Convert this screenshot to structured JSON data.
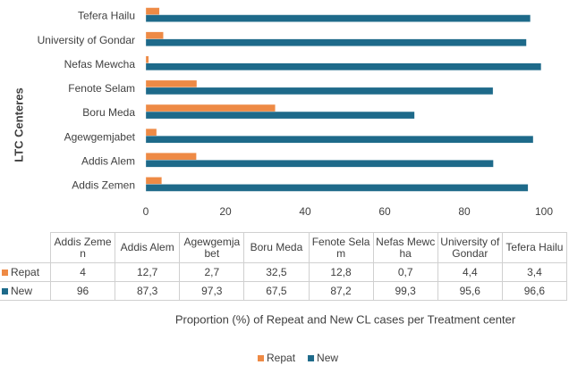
{
  "chart_data": {
    "type": "bar",
    "orientation": "horizontal",
    "y_label": "LTC Centeres",
    "x_label": "Proportion (%) of  Repeat and New CL cases per Treatment center",
    "categories": [
      "Addis Zemen",
      "Addis Alem",
      "Agewgemjabet",
      "Boru Meda",
      "Fenote Selam",
      "Nefas Mewcha",
      "University of Gondar",
      "Tefera Hailu"
    ],
    "series": [
      {
        "name": "Repat",
        "color": "#ee8a45",
        "values": [
          4,
          12.7,
          2.7,
          32.5,
          12.8,
          0.7,
          4.4,
          3.4
        ],
        "value_labels": [
          "4",
          "12,7",
          "2,7",
          "32,5",
          "12,8",
          "0,7",
          "4,4",
          "3,4"
        ]
      },
      {
        "name": "New",
        "color": "#1e6a8a",
        "values": [
          96,
          87.3,
          97.3,
          67.5,
          87.2,
          99.3,
          95.6,
          96.6
        ],
        "value_labels": [
          "96",
          "87,3",
          "97,3",
          "67,5",
          "87,2",
          "99,3",
          "95,6",
          "96,6"
        ]
      }
    ],
    "xlim": [
      0,
      100
    ],
    "xticks": [
      0,
      20,
      40,
      60,
      80,
      100
    ],
    "grid": false,
    "legend": "bottom"
  }
}
